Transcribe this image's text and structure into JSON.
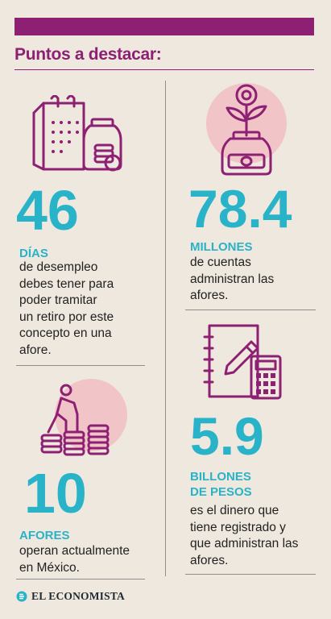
{
  "header": {
    "title": "Puntos a destacar:"
  },
  "colors": {
    "magenta": "#8e2073",
    "cyan": "#29b3c9",
    "pink_blob": "#f1c4c8",
    "background": "#efe8de"
  },
  "stats": [
    {
      "number": "46",
      "label": "DÍAS",
      "description_lines": [
        "de desempleo",
        "debes tener para",
        "poder tramitar",
        "un retiro por este",
        "concepto en una",
        "afore."
      ],
      "icon": "calendar-jar-coins-icon"
    },
    {
      "number": "78.4",
      "label": "MILLONES",
      "description_lines": [
        "de cuentas",
        "administran las",
        "afores."
      ],
      "icon": "money-plant-jar-icon"
    },
    {
      "number": "10",
      "label": "AFORES",
      "description_lines": [
        "operan actualmente",
        "en México."
      ],
      "icon": "person-climbing-coins-icon"
    },
    {
      "number": "5.9",
      "label_lines": [
        "BILLONES",
        "DE PESOS"
      ],
      "description_lines": [
        "es el dinero que",
        "tiene registrado y",
        "que administran las",
        "afores."
      ],
      "icon": "notebook-calculator-icon"
    }
  ],
  "footer": {
    "brand": "EL ECONOMISTA",
    "logo_icon": "el-economista-logo-icon"
  }
}
